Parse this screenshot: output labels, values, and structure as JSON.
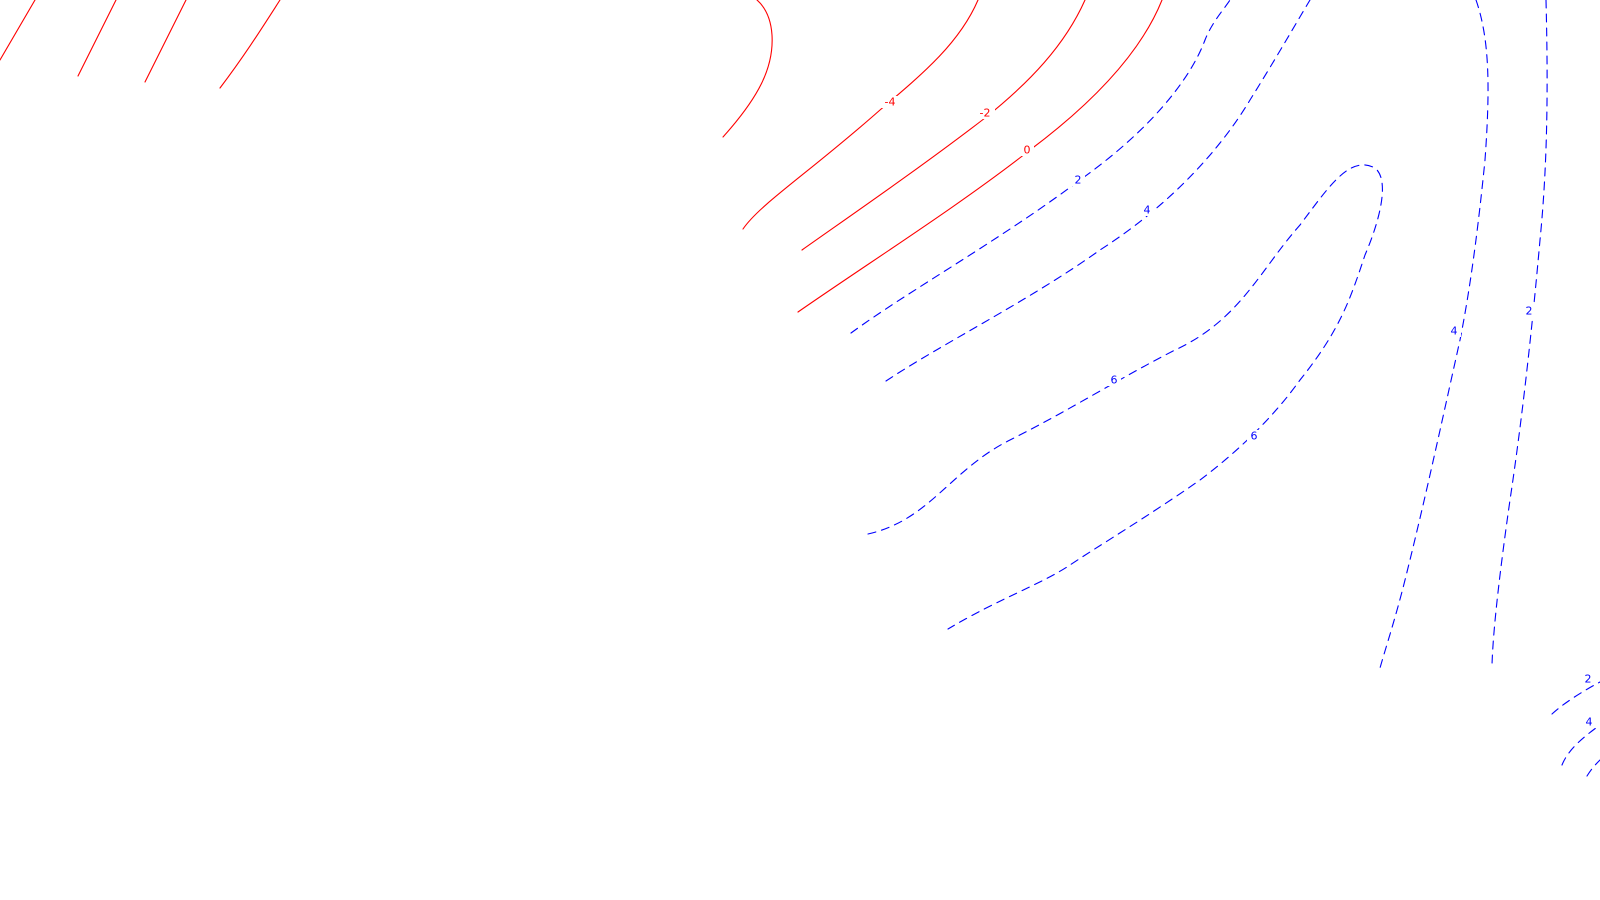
{
  "chart_data": {
    "type": "contour",
    "title": "",
    "xlabel": "",
    "ylabel": "",
    "grid": false,
    "legend": "none",
    "colors": {
      "negative_and_zero": "#ff0000",
      "positive": "#0000ff",
      "background": "#ffffff"
    },
    "line_styles": {
      "negative_and_zero": "solid",
      "positive": "dashed"
    },
    "contour_levels": [
      {
        "level": -4,
        "label": "-4",
        "sign": "negative"
      },
      {
        "level": -2,
        "label": "-2",
        "sign": "negative"
      },
      {
        "level": 0,
        "label": "0",
        "sign": "zero"
      },
      {
        "level": 2,
        "label": "2",
        "sign": "positive"
      },
      {
        "level": 4,
        "label": "4",
        "sign": "positive"
      },
      {
        "level": 6,
        "label": "6",
        "sign": "positive"
      }
    ],
    "visible_labels": [
      {
        "text": "-4",
        "level": -4
      },
      {
        "text": "-2",
        "level": -2
      },
      {
        "text": "0",
        "level": 0
      },
      {
        "text": "2",
        "level": 2
      },
      {
        "text": "4",
        "level": 4
      },
      {
        "text": "6",
        "level": 6
      },
      {
        "text": "6",
        "level": 6
      },
      {
        "text": "4",
        "level": 4
      },
      {
        "text": "2",
        "level": 2
      },
      {
        "text": "2",
        "level": 2
      },
      {
        "text": "4",
        "level": 4
      }
    ]
  }
}
